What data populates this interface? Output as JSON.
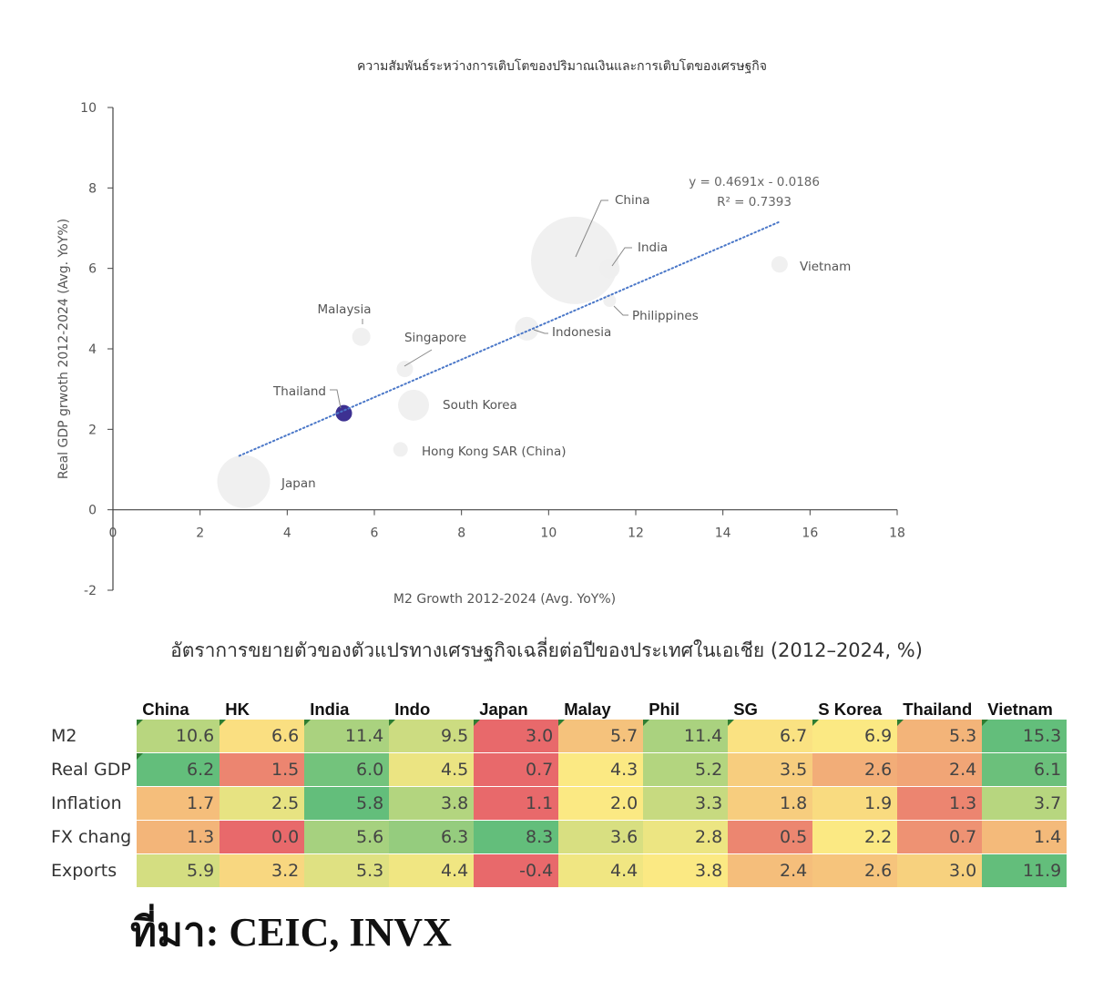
{
  "chart_data": [
    {
      "type": "scatter",
      "title": "ความสัมพันธ์ระหว่างการเติบโตของปริมาณเงินและการเติบโตของเศรษฐกิจ",
      "xlabel": "M2 Growth 2012-2024 (Avg. YoY%)",
      "ylabel": "Real GDP grwoth 2012-2024 (Avg. YoY%)",
      "xlim": [
        0,
        18
      ],
      "ylim": [
        -2,
        10
      ],
      "xticks": [
        "0",
        "2",
        "4",
        "6",
        "8",
        "10",
        "12",
        "14",
        "16",
        "18"
      ],
      "yticks": [
        "-2",
        "0",
        "2",
        "4",
        "6",
        "8",
        "10"
      ],
      "grid": false,
      "bubble_size": "relative economy size",
      "points": [
        {
          "label": "China",
          "x": 10.6,
          "y": 6.2,
          "size": 48
        },
        {
          "label": "India",
          "x": 11.4,
          "y": 6.0,
          "size": 10
        },
        {
          "label": "Vietnam",
          "x": 15.3,
          "y": 6.1,
          "size": 7
        },
        {
          "label": "Philippines",
          "x": 11.4,
          "y": 5.2,
          "size": 5
        },
        {
          "label": "Indonesia",
          "x": 9.5,
          "y": 4.5,
          "size": 12
        },
        {
          "label": "Malaysia",
          "x": 5.7,
          "y": 4.3,
          "size": 8
        },
        {
          "label": "Singapore",
          "x": 6.7,
          "y": 3.5,
          "size": 7
        },
        {
          "label": "Thailand",
          "x": 5.3,
          "y": 2.4,
          "size": 8,
          "highlight": true
        },
        {
          "label": "South Korea",
          "x": 6.9,
          "y": 2.6,
          "size": 16
        },
        {
          "label": "Hong Kong SAR (China)",
          "x": 6.6,
          "y": 1.5,
          "size": 6
        },
        {
          "label": "Japan",
          "x": 3.0,
          "y": 0.7,
          "size": 28
        }
      ],
      "trendline": {
        "equation": "y = 0.4691x - 0.0186",
        "r2": "R² = 0.7393",
        "slope": 0.4691,
        "intercept": -0.0186,
        "x_start": 2.9,
        "x_end": 15.3,
        "style": "dotted"
      },
      "colors": {
        "bubble": "#eeeeee",
        "highlight": "#3d3192",
        "trend": "#4a77c8"
      }
    },
    {
      "type": "table",
      "title": "อัตราการขยายตัวของตัวแปรทางเศรษฐกิจเฉลี่ยต่อปีของประเทศในเอเชีย (2012–2024, %)",
      "columns": [
        "China",
        "HK",
        "India",
        "Indo",
        "Japan",
        "Malay",
        "Phil",
        "SG",
        "S Korea",
        "Thailand",
        "Vietnam"
      ],
      "rows": [
        {
          "label": "M2",
          "values": [
            "10.6",
            "6.6",
            "11.4",
            "9.5",
            "3.0",
            "5.7",
            "11.4",
            "6.7",
            "6.9",
            "5.3",
            "15.3"
          ]
        },
        {
          "label": "Real GDP",
          "values": [
            "6.2",
            "1.5",
            "6.0",
            "4.5",
            "0.7",
            "4.3",
            "5.2",
            "3.5",
            "2.6",
            "2.4",
            "6.1"
          ]
        },
        {
          "label": "Inflation",
          "values": [
            "1.7",
            "2.5",
            "5.8",
            "3.8",
            "1.1",
            "2.0",
            "3.3",
            "1.8",
            "1.9",
            "1.3",
            "3.7"
          ]
        },
        {
          "label": "FX chang",
          "values": [
            "1.3",
            "0.0",
            "5.6",
            "6.3",
            "8.3",
            "3.6",
            "2.8",
            "0.5",
            "2.2",
            "0.7",
            "1.4"
          ]
        },
        {
          "label": "Exports",
          "values": [
            "5.9",
            "3.2",
            "5.3",
            "4.4",
            "-0.4",
            "4.4",
            "3.8",
            "2.4",
            "2.6",
            "3.0",
            "11.9"
          ]
        }
      ],
      "color_scale": {
        "low": "#e8696b",
        "mid": "#fbe983",
        "high": "#63be7b"
      }
    }
  ],
  "source_note": "ที่มา: CEIC, INVX"
}
